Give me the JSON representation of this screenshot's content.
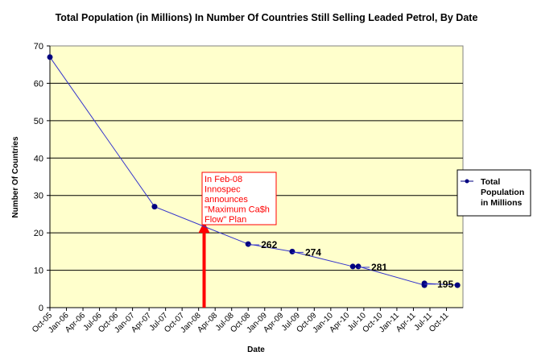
{
  "chart_data": {
    "type": "line",
    "title": "Total Population (in Millions) In Number Of Countries Still Selling Leaded Petrol, By Date",
    "xlabel": "Date",
    "ylabel": "Number Of Countries",
    "ylim": [
      0,
      70
    ],
    "y_ticks": [
      0,
      10,
      20,
      30,
      40,
      50,
      60,
      70
    ],
    "xlim": [
      "2005-10",
      "2012-01"
    ],
    "x_tick_labels": [
      "Oct-05",
      "Jan-06",
      "Apr-06",
      "Jul-06",
      "Oct-06",
      "Jan-07",
      "Apr-07",
      "Jul-07",
      "Oct-07",
      "Jan-08",
      "Apr-08",
      "Jul-08",
      "Oct-08",
      "Jan-09",
      "Apr-09",
      "Jul-09",
      "Oct-09",
      "Jan-10",
      "Apr-10",
      "Jul-10",
      "Oct-10",
      "Jan-11",
      "Apr-11",
      "Jul-11",
      "Oct-11"
    ],
    "grid": "horizontal",
    "plot_background": "#ffffcc",
    "legend_placement": "right",
    "series": [
      {
        "name": "Total Population in Millions",
        "color": "#000080",
        "points": [
          {
            "x": "2005-10",
            "y": 67
          },
          {
            "x": "2007-05",
            "y": 27
          },
          {
            "x": "2008-10",
            "y": 17,
            "label": "262"
          },
          {
            "x": "2009-06",
            "y": 15,
            "label": "274"
          },
          {
            "x": "2010-05",
            "y": 11
          },
          {
            "x": "2010-06",
            "y": 11,
            "label": "281"
          },
          {
            "x": "2011-06",
            "y": 6
          },
          {
            "x": "2011-06",
            "y": 6.5,
            "label": "195"
          },
          {
            "x": "2011-12",
            "y": 6
          }
        ]
      }
    ],
    "annotation": {
      "lines": [
        "In Feb-08",
        "Innospec",
        "announces",
        "\"Maximum Ca$h",
        "Flow\" Plan"
      ],
      "date": "2008-02",
      "color": "#ff0000"
    },
    "legend": {
      "lines": [
        "Total",
        "Population",
        "in Millions"
      ]
    }
  }
}
